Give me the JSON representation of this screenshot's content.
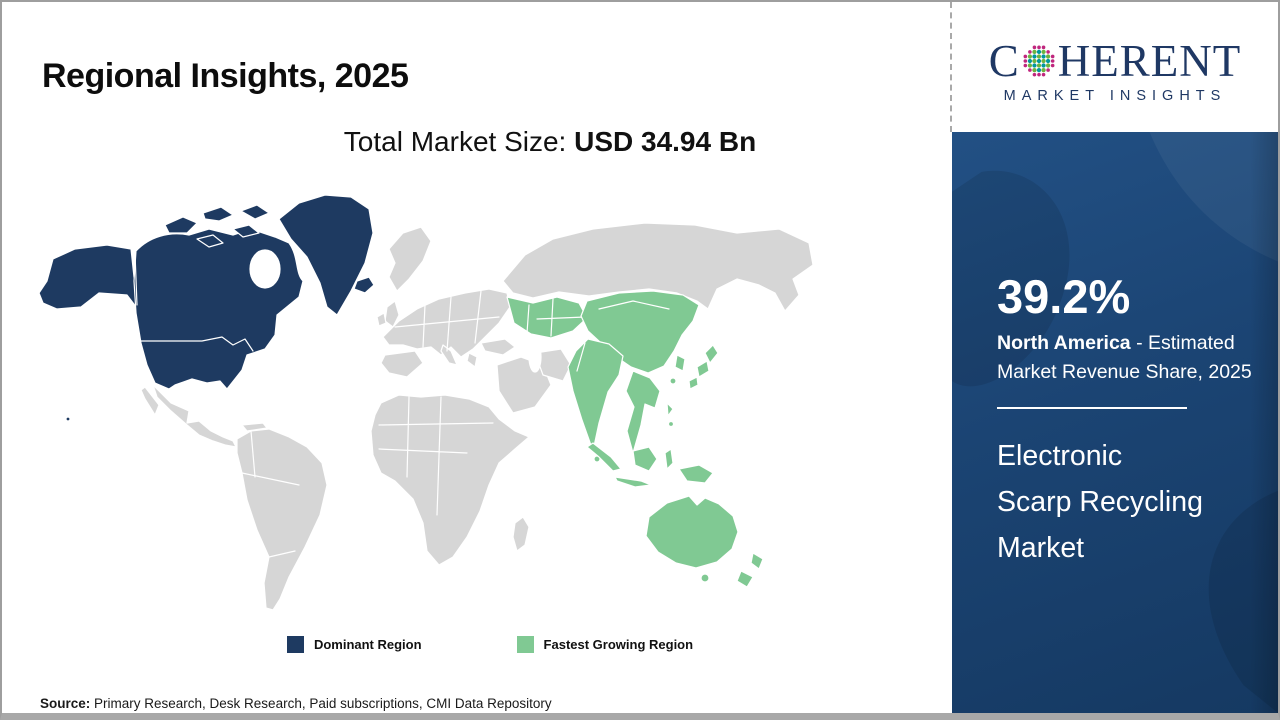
{
  "slide": {
    "title": "Regional Insights, 2025",
    "subtitle_prefix": "Total Market Size: ",
    "subtitle_value": "USD 34.94 Bn",
    "source_label": "Source:",
    "source_text": " Primary Research, Desk Research, Paid subscriptions, CMI Data Repository"
  },
  "logo": {
    "word_start": "C",
    "word_end": "HERENT",
    "tagline": "MARKET INSIGHTS",
    "colors": {
      "navy": "#1f3864",
      "teal": "#00979f",
      "green": "#6cb33f",
      "magenta": "#c0267e"
    }
  },
  "map": {
    "colors": {
      "dominant": "#1e3a61",
      "fastest": "#80c993",
      "other": "#d6d6d6",
      "ocean": "#ffffff"
    },
    "legend": [
      {
        "key": "dominant",
        "label": "Dominant Region",
        "color": "#1e3a61"
      },
      {
        "key": "fastest",
        "label": "Fastest Growing Region",
        "color": "#80c993"
      }
    ],
    "regions": {
      "dominant": [
        "United States",
        "Canada",
        "Alaska",
        "Greenland",
        "Iceland"
      ],
      "fastest": [
        "Central Asia",
        "China",
        "Mongolia",
        "India",
        "Southeast Asia",
        "Korea",
        "Japan",
        "Indonesia",
        "Papua New Guinea",
        "Australia",
        "New Zealand"
      ],
      "other": [
        "South America",
        "Mexico",
        "Europe",
        "Africa",
        "Middle East",
        "Russia"
      ]
    }
  },
  "sidebar": {
    "share_value": "39.2%",
    "share_region": "North America",
    "share_desc": " - Estimated Market Revenue Share, 2025",
    "market_name_lines": [
      "Electronic",
      "Scarp Recycling",
      "Market"
    ],
    "bg_color": "#1b4473"
  }
}
